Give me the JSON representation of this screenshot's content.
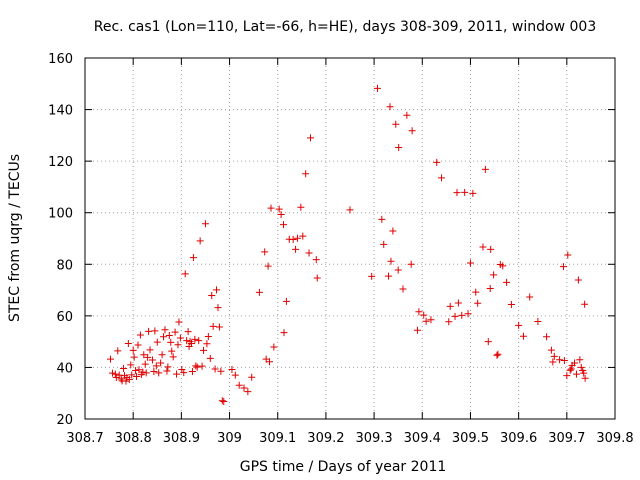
{
  "chart_data": {
    "type": "scatter",
    "title": "Rec. cas1 (Lon=110, Lat=-66, h=HE), days 308-309, 2011, window 003",
    "xlabel": "GPS time / Days of year 2011",
    "ylabel": "STEC from uqrg / TECUs",
    "xlim": [
      308.7,
      309.8
    ],
    "ylim": [
      20,
      160
    ],
    "x_ticks": [
      "308.7",
      "308.8",
      "308.9",
      "309",
      "309.1",
      "309.2",
      "309.3",
      "309.4",
      "309.5",
      "309.6",
      "309.7",
      "309.8"
    ],
    "y_ticks": [
      "20",
      "40",
      "60",
      "80",
      "100",
      "120",
      "140",
      "160"
    ],
    "grid": true,
    "marker": "plus",
    "color": "#e00000",
    "x": [
      308.753,
      308.757,
      308.763,
      308.765,
      308.768,
      308.771,
      308.775,
      308.777,
      308.78,
      308.782,
      308.785,
      308.787,
      308.79,
      308.792,
      308.795,
      308.797,
      308.8,
      308.802,
      308.805,
      308.807,
      308.81,
      308.812,
      308.815,
      308.817,
      308.82,
      308.822,
      308.825,
      308.827,
      308.83,
      308.832,
      308.835,
      308.84,
      308.843,
      308.845,
      308.848,
      308.85,
      308.853,
      308.857,
      308.86,
      308.863,
      308.866,
      308.87,
      308.872,
      308.875,
      308.878,
      308.88,
      308.883,
      308.887,
      308.89,
      308.893,
      308.895,
      308.898,
      308.901,
      308.905,
      308.908,
      308.911,
      308.914,
      308.916,
      308.918,
      308.921,
      308.923,
      308.925,
      308.928,
      308.93,
      308.933,
      308.936,
      308.939,
      308.943,
      308.946,
      308.95,
      308.953,
      308.956,
      308.96,
      308.963,
      308.966,
      308.97,
      308.973,
      308.976,
      308.979,
      308.982,
      308.985,
      308.988,
      309.005,
      309.012,
      309.02,
      309.03,
      309.038,
      309.046,
      309.062,
      309.073,
      309.076,
      309.08,
      309.083,
      309.086,
      309.092,
      309.103,
      309.107,
      309.112,
      309.113,
      309.118,
      309.124,
      309.132,
      309.137,
      309.141,
      309.148,
      309.152,
      309.158,
      309.165,
      309.168,
      309.18,
      309.182,
      309.25,
      309.295,
      309.307,
      309.316,
      309.32,
      309.33,
      309.333,
      309.335,
      309.339,
      309.345,
      309.35,
      309.351,
      309.36,
      309.368,
      309.377,
      309.379,
      309.39,
      309.393,
      309.403,
      309.408,
      309.418,
      309.43,
      309.44,
      309.455,
      309.458,
      309.468,
      309.472,
      309.475,
      309.482,
      309.488,
      309.495,
      309.5,
      309.505,
      309.511,
      309.515,
      309.526,
      309.531,
      309.537,
      309.541,
      309.542,
      309.548,
      309.555,
      309.557,
      309.562,
      309.567,
      309.575,
      309.585,
      309.6,
      309.61,
      309.623,
      309.64,
      309.658,
      309.668,
      309.671,
      309.674,
      309.685,
      309.693,
      309.695,
      309.7,
      309.707,
      309.711,
      309.716,
      309.72,
      309.724,
      309.727,
      309.73,
      309.733,
      309.735,
      309.737,
      309.738,
      309.702,
      309.709
    ],
    "y": [
      43.2,
      37.8,
      37.4,
      36.1,
      46.4,
      37.0,
      35.5,
      34.8,
      39.6,
      36.8,
      34.7,
      36.1,
      49.3,
      35.3,
      41.0,
      37.1,
      46.6,
      44.0,
      38.8,
      36.5,
      48.7,
      39.1,
      52.6,
      37.2,
      38.2,
      44.9,
      41.3,
      37.9,
      43.9,
      54.0,
      46.8,
      42.9,
      38.4,
      54.2,
      40.6,
      49.8,
      37.9,
      41.7,
      44.9,
      51.9,
      54.6,
      38.6,
      40.2,
      52.4,
      49.7,
      46.3,
      44.1,
      53.7,
      37.4,
      48.8,
      57.6,
      51.4,
      39.2,
      38.0,
      76.3,
      50.4,
      53.9,
      48.1,
      50.1,
      49.3,
      38.4,
      82.6,
      50.9,
      40.6,
      40.1,
      50.4,
      89.1,
      40.5,
      46.6,
      95.7,
      49.2,
      52.0,
      43.5,
      67.9,
      55.9,
      39.4,
      70.1,
      63.2,
      55.7,
      38.5,
      27.1,
      26.8,
      39.2,
      37.0,
      33.1,
      32.0,
      30.6,
      36.2,
      69.1,
      84.8,
      43.2,
      79.3,
      42.2,
      101.8,
      47.9,
      101.4,
      99.3,
      95.4,
      53.5,
      65.6,
      89.7,
      89.6,
      85.8,
      90.1,
      102.1,
      90.9,
      115.1,
      84.4,
      129.0,
      81.8,
      74.7,
      101.1,
      75.3,
      148.2,
      97.4,
      87.7,
      75.4,
      141.1,
      81.2,
      92.9,
      134.3,
      77.8,
      125.3,
      70.4,
      137.8,
      80.0,
      131.8,
      54.4,
      61.6,
      60.3,
      57.9,
      58.5,
      119.5,
      113.5,
      57.7,
      63.7,
      59.8,
      107.8,
      65.0,
      60.2,
      107.9,
      60.8,
      80.5,
      107.5,
      69.2,
      64.9,
      86.7,
      116.8,
      50.0,
      70.6,
      85.8,
      75.9,
      44.7,
      45.1,
      79.9,
      79.4,
      73.0,
      64.4,
      56.3,
      52.1,
      67.3,
      57.8,
      51.9,
      46.7,
      42.1,
      44.3,
      43.0,
      79.1,
      42.7,
      36.8,
      38.9,
      40.8,
      41.7,
      37.4,
      73.9,
      43.0,
      40.0,
      38.8,
      37.8,
      64.5,
      35.8,
      83.6,
      39.4
    ]
  }
}
